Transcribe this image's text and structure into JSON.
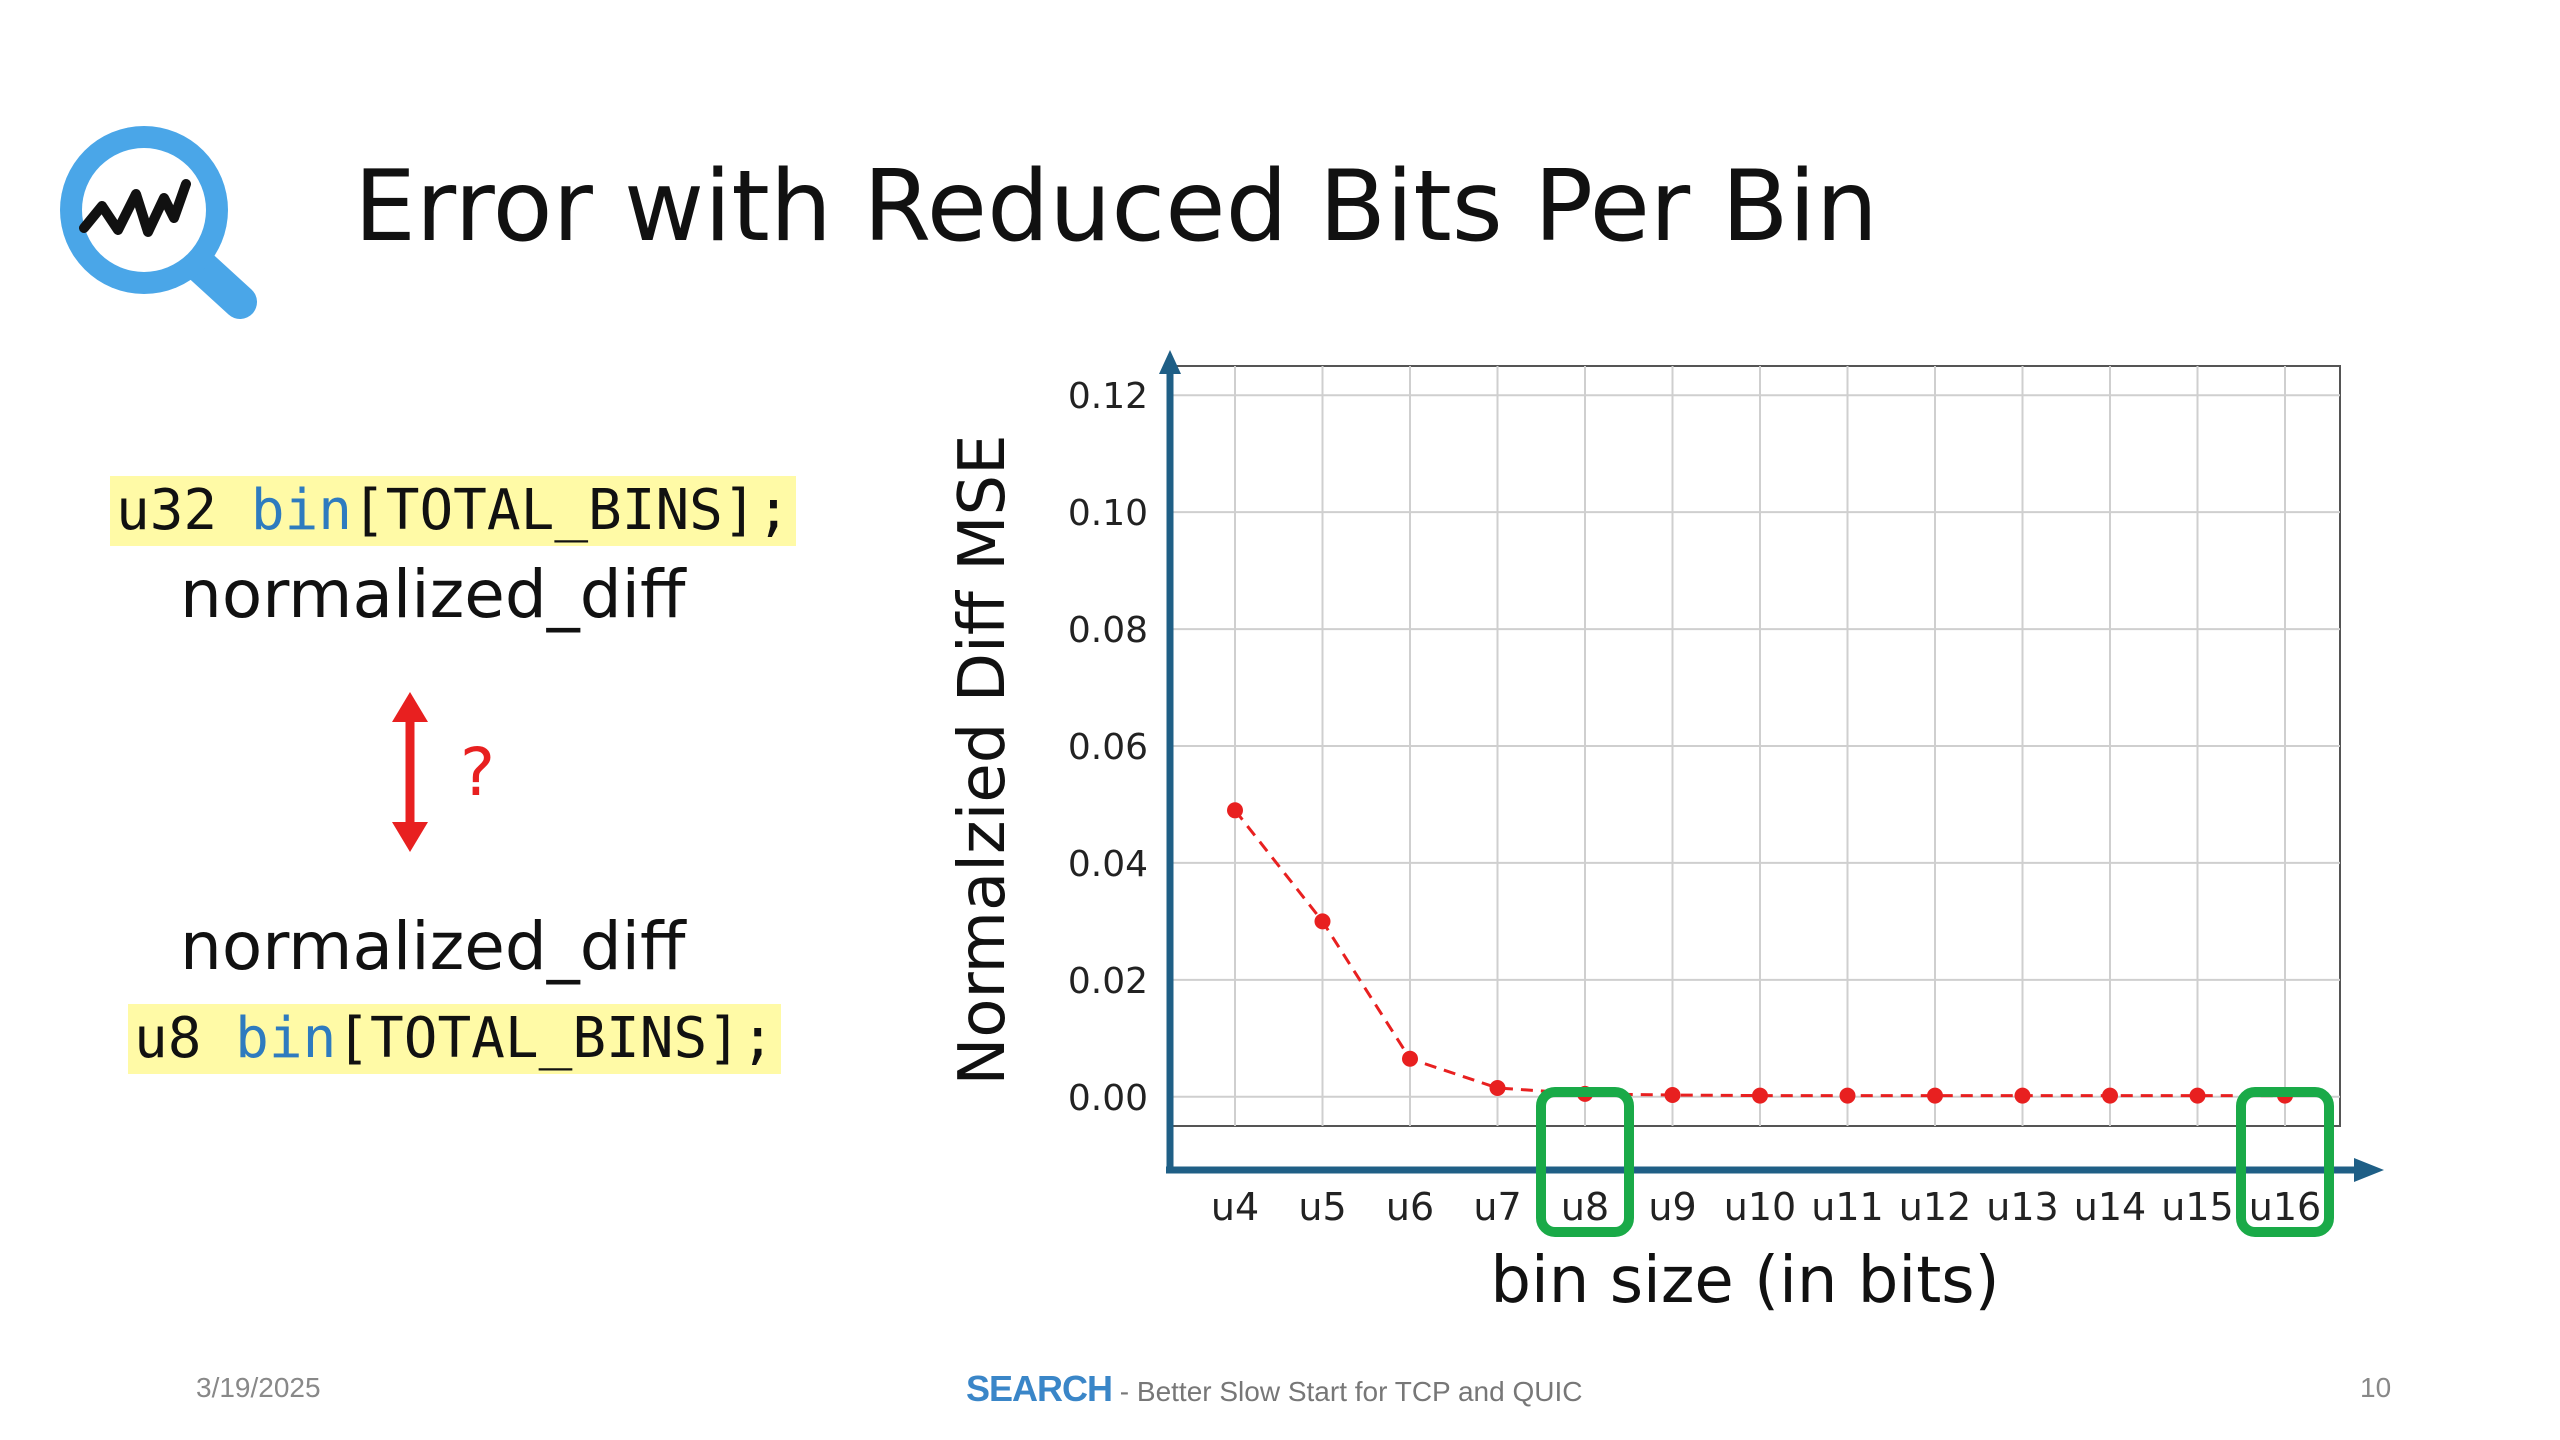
{
  "slide": {
    "title": "Error with Reduced Bits Per Bin",
    "code_top": {
      "type": "u32",
      "name": "bin",
      "rest": "[TOTAL_BINS];"
    },
    "label_top": "normalized_diff",
    "question": "?",
    "label_bottom": "normalized_diff",
    "code_bottom": {
      "type": "u8",
      "name": "bin",
      "rest": "[TOTAL_BINS];"
    }
  },
  "footer": {
    "date": "3/19/2025",
    "brand": "SEARCH",
    "subtitle": " - Better Slow Start for TCP and QUIC",
    "page": "10"
  },
  "colors": {
    "axis": "#1f5f86",
    "series": "#e82020",
    "highlight": "#1aaa48",
    "code_bg": "#fffaa6",
    "keyword": "#2e7bbf"
  },
  "chart_data": {
    "type": "line",
    "categories": [
      "u4",
      "u5",
      "u6",
      "u7",
      "u8",
      "u9",
      "u10",
      "u11",
      "u12",
      "u13",
      "u14",
      "u15",
      "u16"
    ],
    "values": [
      0.049,
      0.03,
      0.0065,
      0.0015,
      0.0005,
      0.0003,
      0.0002,
      0.0002,
      0.0002,
      0.0002,
      0.0002,
      0.0002,
      0.0002
    ],
    "ylabel": "Normalzied Diff MSE",
    "xlabel": "bin size (in bits)",
    "ylim": [
      -0.005,
      0.125
    ],
    "yticks": [
      0.0,
      0.02,
      0.04,
      0.06,
      0.08,
      0.1,
      0.12
    ],
    "ytick_labels": [
      "0.00",
      "0.02",
      "0.04",
      "0.06",
      "0.08",
      "0.10",
      "0.12"
    ],
    "grid": true,
    "line_style": "dashed",
    "highlighted_categories": [
      "u8",
      "u16"
    ]
  }
}
